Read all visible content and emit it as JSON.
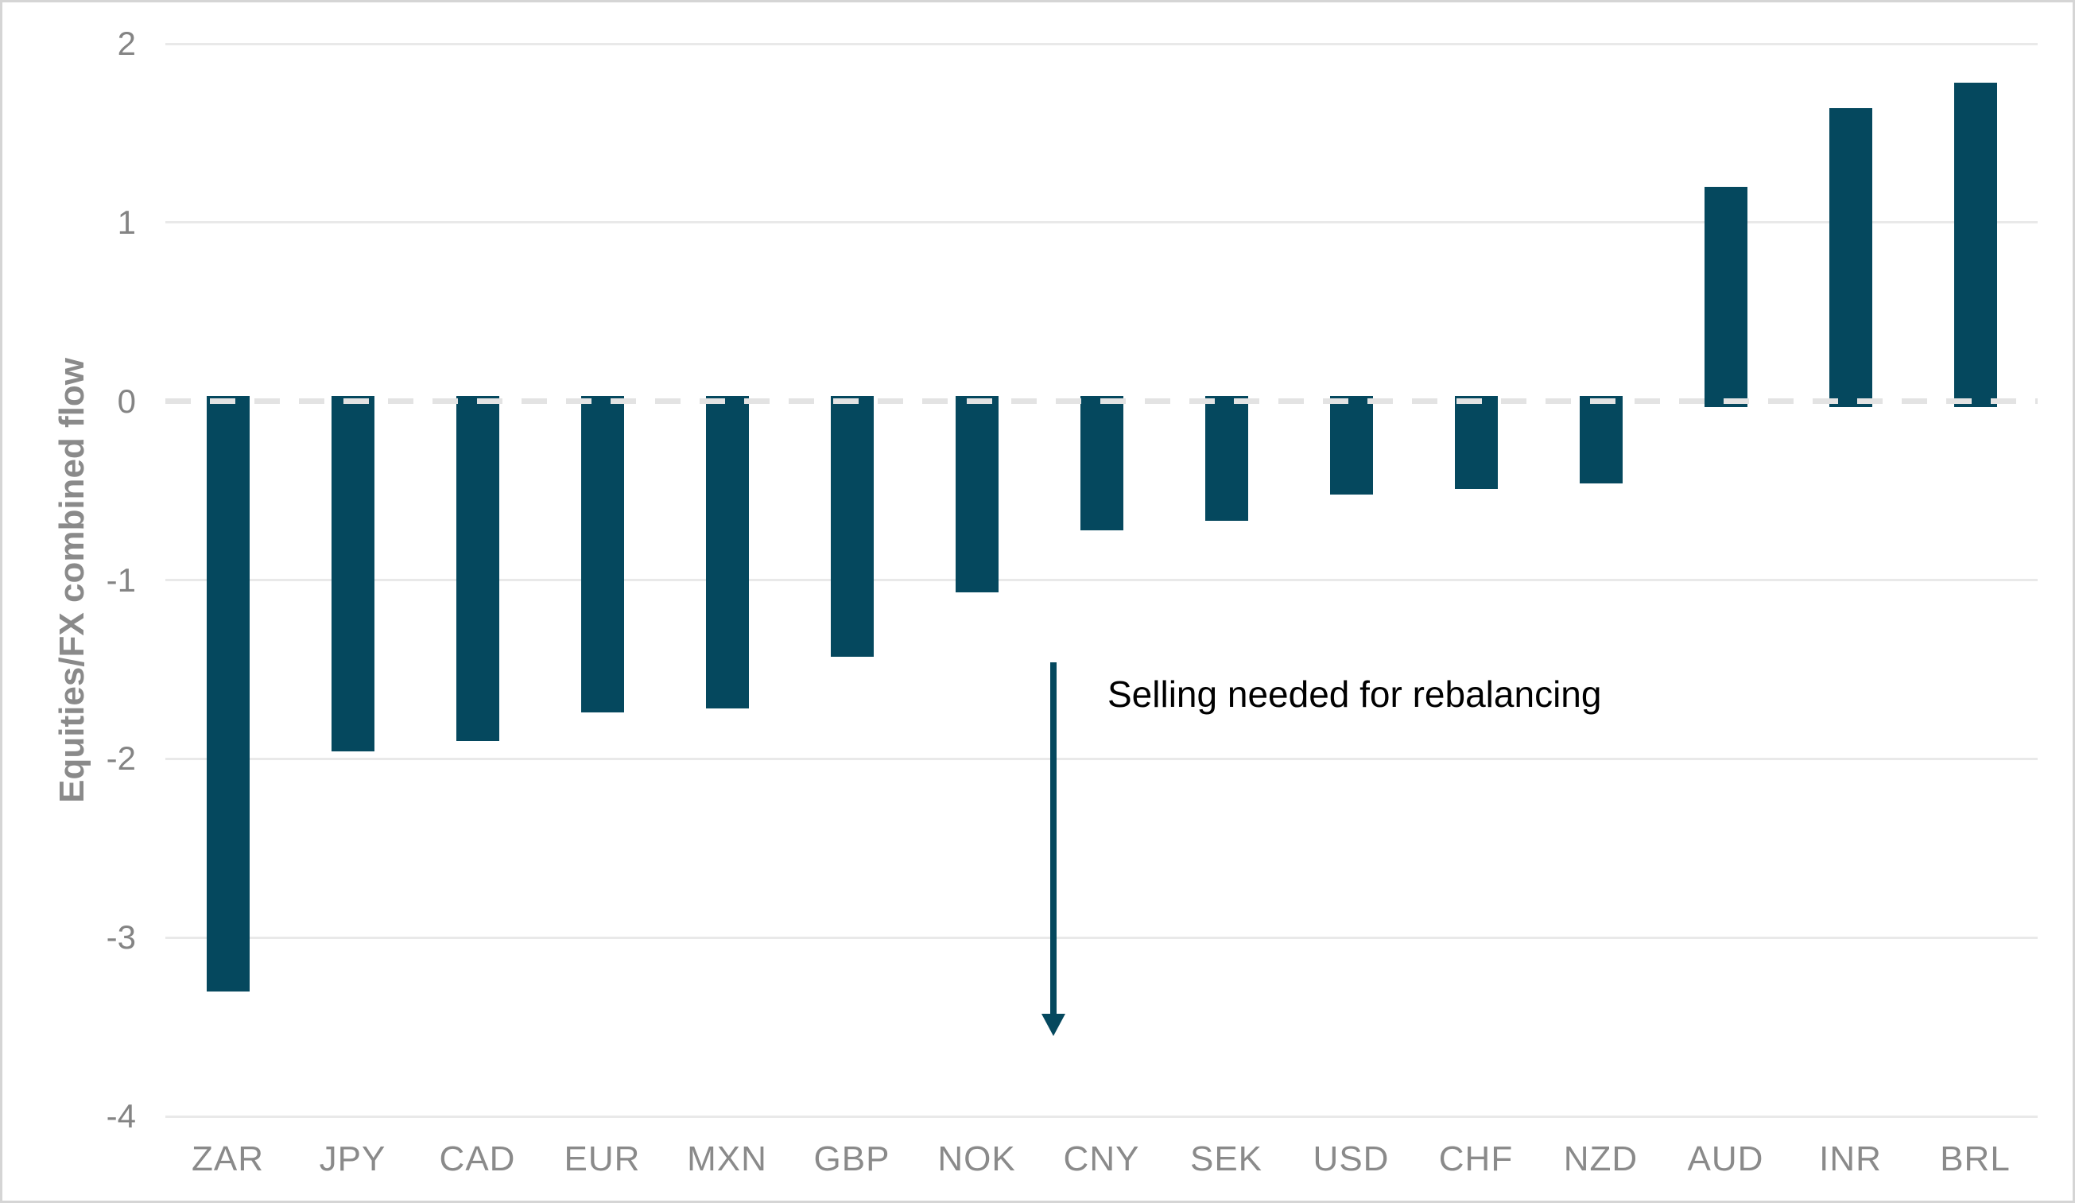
{
  "chart_data": {
    "type": "bar",
    "title": "",
    "categories": [
      "ZAR",
      "JPY",
      "CAD",
      "EUR",
      "MXN",
      "GBP",
      "NOK",
      "CNY",
      "SEK",
      "USD",
      "CHF",
      "NZD",
      "AUD",
      "INR",
      "BRL"
    ],
    "values": [
      -3.3,
      -1.96,
      -1.9,
      -1.74,
      -1.72,
      -1.43,
      -1.07,
      -0.72,
      -0.67,
      -0.52,
      -0.49,
      -0.46,
      1.2,
      1.64,
      1.78
    ],
    "xlabel": "",
    "ylabel": "Equities/FX combined flow",
    "yticks": [
      "2",
      "1",
      "0",
      "-1",
      "-2",
      "-3",
      "-4"
    ],
    "ytick_values": [
      2,
      1,
      0,
      -1,
      -2,
      -3,
      -4
    ],
    "ylim": [
      -4,
      2
    ],
    "grid": "horizontal",
    "legend": "none",
    "zero_line_style": "dashed",
    "annotation": {
      "text": "Selling needed for rebalancing",
      "arrow_direction": "down"
    },
    "colors": {
      "bar": "#05485e",
      "arrow": "#05485e",
      "grid": "#e9e9e9",
      "zero_line": "#e3e3e3",
      "tick_text": "#848484",
      "category_text": "#8a8a8a",
      "axis_title_text": "#8a8a8a",
      "annotation_text": "#000000",
      "frame": "#d5d5d5",
      "background": "#ffffff"
    }
  }
}
